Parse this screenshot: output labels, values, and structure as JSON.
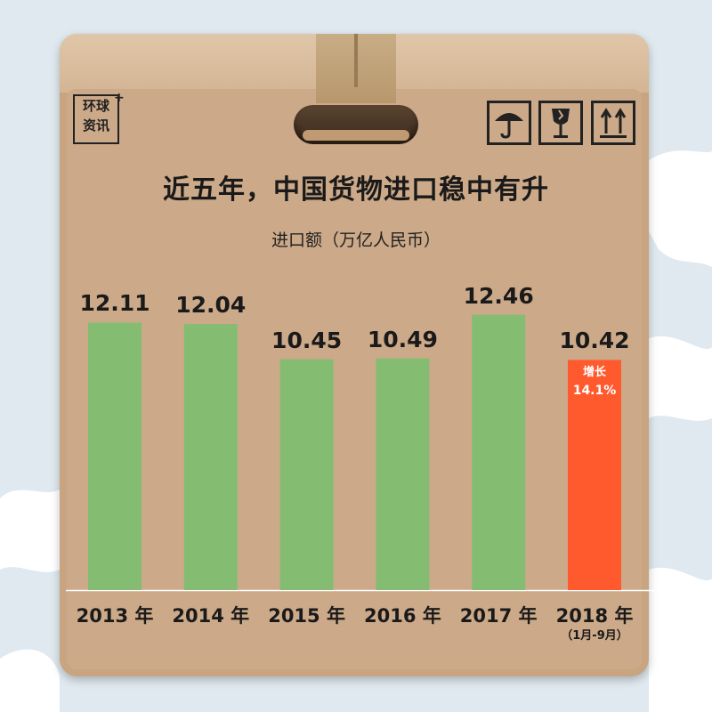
{
  "brand": {
    "line1": "环球",
    "line2": "资讯",
    "plus": "+"
  },
  "icons": [
    "umbrella-icon",
    "fragile-glass-icon",
    "this-side-up-icon"
  ],
  "colors": {
    "bar": "#84bd72",
    "highlight_bar": "#ff5a2e",
    "box": "#c8a481"
  },
  "chart_data": {
    "type": "bar",
    "title": "近五年，中国货物进口稳中有升",
    "ylabel": "进口额（万亿人民币）",
    "categories": [
      "2013 年",
      "2014 年",
      "2015 年",
      "2016 年",
      "2017 年",
      "2018 年"
    ],
    "category_notes": [
      "",
      "",
      "",
      "",
      "",
      "（1月-9月）"
    ],
    "values": [
      12.11,
      12.04,
      10.45,
      10.49,
      12.46,
      10.42
    ],
    "value_labels": [
      "12.11",
      "12.04",
      "10.45",
      "10.49",
      "12.46",
      "10.42"
    ],
    "highlight_index": 5,
    "annotation": {
      "line1": "增长",
      "line2": "14.1%"
    },
    "ylim": [
      0,
      13.7
    ],
    "grid": false,
    "legend": "none"
  }
}
